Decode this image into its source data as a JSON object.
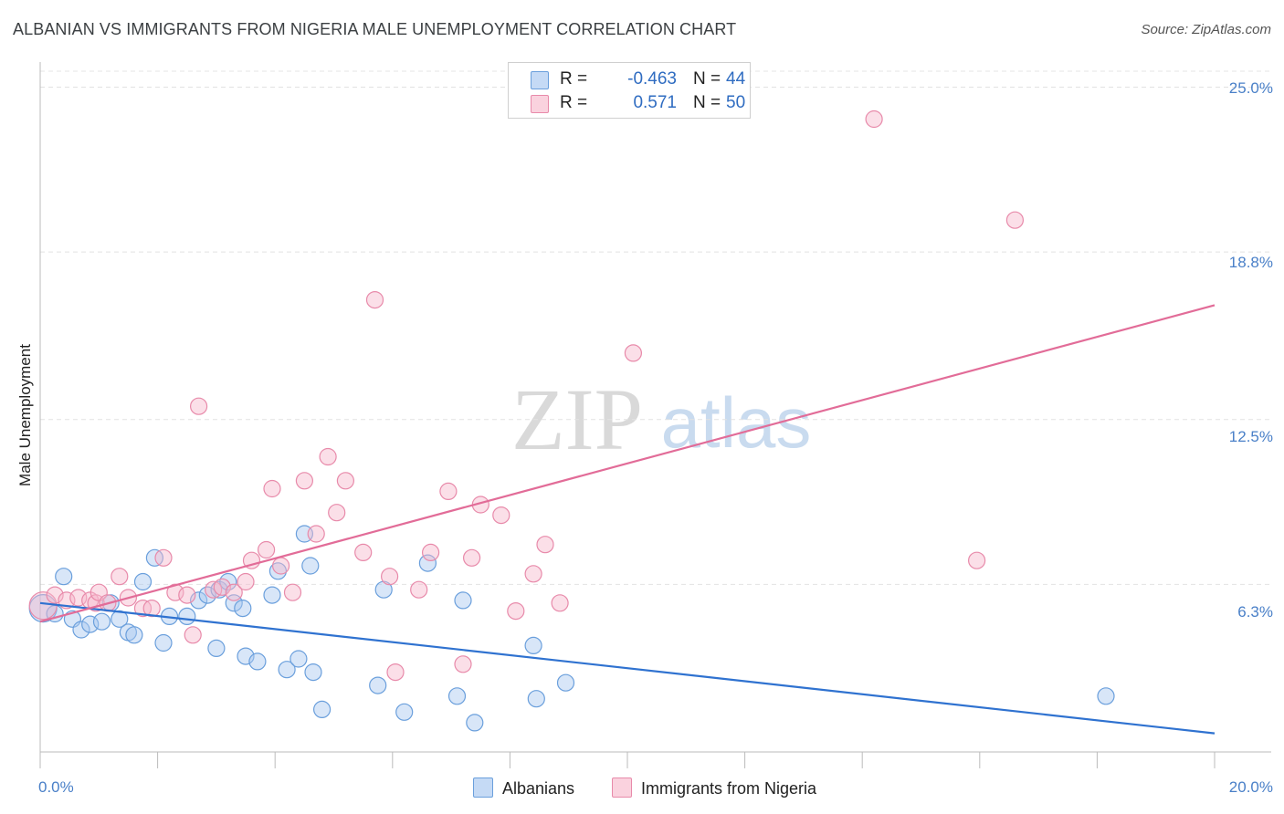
{
  "header": {
    "title": "ALBANIAN VS IMMIGRANTS FROM NIGERIA MALE UNEMPLOYMENT CORRELATION CHART",
    "source": "Source: ZipAtlas.com"
  },
  "watermark": {
    "zip": "ZIP",
    "atlas": "atlas"
  },
  "stats": [
    {
      "r_label": "R =",
      "r_value": "-0.463",
      "n_label": "N =",
      "n_value": "44",
      "color": "#a8c8f0"
    },
    {
      "r_label": "R =",
      "r_value": "0.571",
      "n_label": "N =",
      "n_value": "50",
      "color": "#f6b8cb"
    }
  ],
  "legend": [
    {
      "label": "Albanians",
      "color": "#a8c8f0"
    },
    {
      "label": "Immigrants from Nigeria",
      "color": "#f6b8cb"
    }
  ],
  "chart_data": {
    "type": "scatter",
    "title": "ALBANIAN VS IMMIGRANTS FROM NIGERIA MALE UNEMPLOYMENT CORRELATION CHART",
    "xlabel": "",
    "ylabel": "Male Unemployment",
    "xlim": [
      0,
      20
    ],
    "ylim": [
      0,
      25.6
    ],
    "x_tick_labels": [
      "0.0%",
      "20.0%"
    ],
    "y_ticks": [
      6.3,
      12.5,
      18.8,
      25.0
    ],
    "y_tick_labels": [
      "6.3%",
      "12.5%",
      "18.8%",
      "25.0%"
    ],
    "grid": true,
    "series": [
      {
        "name": "Albanians",
        "color": "#a8c8f0",
        "stroke": "#6a9fdc",
        "line_color": "#2f72d0",
        "trend": {
          "x": [
            0,
            20
          ],
          "y": [
            5.6,
            0.7
          ]
        },
        "points": [
          [
            0.05,
            5.4
          ],
          [
            0.25,
            5.2
          ],
          [
            0.4,
            6.6
          ],
          [
            0.55,
            5.0
          ],
          [
            0.7,
            4.6
          ],
          [
            0.85,
            4.8
          ],
          [
            1.05,
            4.9
          ],
          [
            1.2,
            5.6
          ],
          [
            1.35,
            5.0
          ],
          [
            1.5,
            4.5
          ],
          [
            1.6,
            4.4
          ],
          [
            1.75,
            6.4
          ],
          [
            1.95,
            7.3
          ],
          [
            2.1,
            4.1
          ],
          [
            2.2,
            5.1
          ],
          [
            2.5,
            5.1
          ],
          [
            2.7,
            5.7
          ],
          [
            2.85,
            5.9
          ],
          [
            3.05,
            6.1
          ],
          [
            3.0,
            3.9
          ],
          [
            3.2,
            6.4
          ],
          [
            3.3,
            5.6
          ],
          [
            3.45,
            5.4
          ],
          [
            3.5,
            3.6
          ],
          [
            3.7,
            3.4
          ],
          [
            3.95,
            5.9
          ],
          [
            4.05,
            6.8
          ],
          [
            4.2,
            3.1
          ],
          [
            4.4,
            3.5
          ],
          [
            4.5,
            8.2
          ],
          [
            4.6,
            7.0
          ],
          [
            4.65,
            3.0
          ],
          [
            4.8,
            1.6
          ],
          [
            5.75,
            2.5
          ],
          [
            5.85,
            6.1
          ],
          [
            6.2,
            1.5
          ],
          [
            6.6,
            7.1
          ],
          [
            7.1,
            2.1
          ],
          [
            7.2,
            5.7
          ],
          [
            7.4,
            1.1
          ],
          [
            8.4,
            4.0
          ],
          [
            8.45,
            2.0
          ],
          [
            8.95,
            2.6
          ],
          [
            18.15,
            2.1
          ]
        ]
      },
      {
        "name": "Immigrants from Nigeria",
        "color": "#f6b8cb",
        "stroke": "#e88aaa",
        "line_color": "#e26c98",
        "trend": {
          "x": [
            0,
            20
          ],
          "y": [
            4.9,
            16.8
          ]
        },
        "points": [
          [
            0.05,
            5.5
          ],
          [
            0.25,
            5.9
          ],
          [
            0.45,
            5.7
          ],
          [
            0.65,
            5.8
          ],
          [
            0.85,
            5.7
          ],
          [
            0.95,
            5.6
          ],
          [
            1.0,
            6.0
          ],
          [
            1.15,
            5.6
          ],
          [
            1.35,
            6.6
          ],
          [
            1.5,
            5.8
          ],
          [
            1.75,
            5.4
          ],
          [
            1.9,
            5.4
          ],
          [
            2.1,
            7.3
          ],
          [
            2.3,
            6.0
          ],
          [
            2.5,
            5.9
          ],
          [
            2.6,
            4.4
          ],
          [
            2.7,
            13.0
          ],
          [
            2.95,
            6.1
          ],
          [
            3.1,
            6.2
          ],
          [
            3.3,
            6.0
          ],
          [
            3.5,
            6.4
          ],
          [
            3.6,
            7.2
          ],
          [
            3.85,
            7.6
          ],
          [
            3.95,
            9.9
          ],
          [
            4.1,
            7.0
          ],
          [
            4.3,
            6.0
          ],
          [
            4.5,
            10.2
          ],
          [
            4.7,
            8.2
          ],
          [
            4.9,
            11.1
          ],
          [
            5.05,
            9.0
          ],
          [
            5.2,
            10.2
          ],
          [
            5.5,
            7.5
          ],
          [
            5.7,
            17.0
          ],
          [
            5.95,
            6.6
          ],
          [
            6.05,
            3.0
          ],
          [
            6.45,
            6.1
          ],
          [
            6.65,
            7.5
          ],
          [
            6.95,
            9.8
          ],
          [
            7.2,
            3.3
          ],
          [
            7.35,
            7.3
          ],
          [
            7.5,
            9.3
          ],
          [
            7.85,
            8.9
          ],
          [
            8.1,
            5.3
          ],
          [
            8.4,
            6.7
          ],
          [
            8.6,
            7.8
          ],
          [
            8.85,
            5.6
          ],
          [
            10.1,
            15.0
          ],
          [
            14.2,
            23.8
          ],
          [
            15.95,
            7.2
          ],
          [
            16.6,
            20.0
          ]
        ]
      }
    ],
    "legend_position": "bottom-center"
  }
}
